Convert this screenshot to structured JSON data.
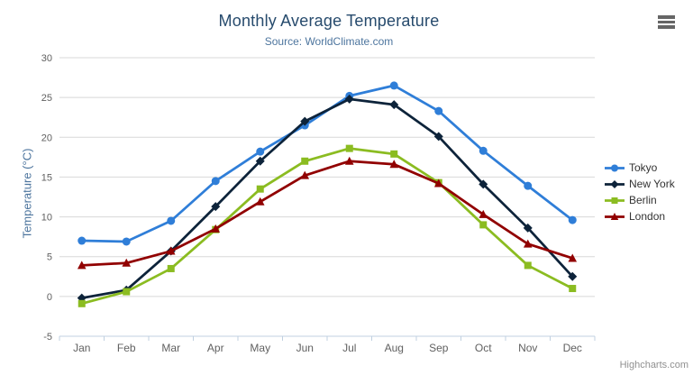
{
  "chart": {
    "title": "Monthly Average Temperature",
    "subtitle": "Source: WorldClimate.com",
    "y_axis_title": "Temperature (°C)",
    "credits": "Highcharts.com"
  },
  "icons": {
    "export_menu": "hamburger-icon"
  },
  "colors": {
    "title": "#274b6d",
    "subtitle": "#4d759e",
    "axis_labels": "#606060",
    "gridline": "#d8d8d8",
    "axis_line": "#c0d0e0",
    "legend_text": "#333333",
    "credits": "#909090",
    "export_icon": "#666666"
  },
  "chart_data": {
    "type": "line",
    "title": "Monthly Average Temperature",
    "subtitle": "Source: WorldClimate.com",
    "xlabel": "",
    "ylabel": "Temperature (°C)",
    "ylim": [
      -5,
      30
    ],
    "yticks": [
      -5,
      0,
      5,
      10,
      15,
      20,
      25,
      30
    ],
    "grid": true,
    "legend_position": "right",
    "categories": [
      "Jan",
      "Feb",
      "Mar",
      "Apr",
      "May",
      "Jun",
      "Jul",
      "Aug",
      "Sep",
      "Oct",
      "Nov",
      "Dec"
    ],
    "series": [
      {
        "name": "Tokyo",
        "color": "#2f7ed8",
        "marker": "circle",
        "values": [
          7.0,
          6.9,
          9.5,
          14.5,
          18.2,
          21.5,
          25.2,
          26.5,
          23.3,
          18.3,
          13.9,
          9.6
        ]
      },
      {
        "name": "New York",
        "color": "#0d233a",
        "marker": "diamond",
        "values": [
          -0.2,
          0.8,
          5.7,
          11.3,
          17.0,
          22.0,
          24.8,
          24.1,
          20.1,
          14.1,
          8.6,
          2.5
        ]
      },
      {
        "name": "Berlin",
        "color": "#8bbc21",
        "marker": "square",
        "values": [
          -0.9,
          0.6,
          3.5,
          8.4,
          13.5,
          17.0,
          18.6,
          17.9,
          14.3,
          9.0,
          3.9,
          1.0
        ]
      },
      {
        "name": "London",
        "color": "#910000",
        "marker": "triangle",
        "values": [
          3.9,
          4.2,
          5.7,
          8.5,
          11.9,
          15.2,
          17.0,
          16.6,
          14.2,
          10.3,
          6.6,
          4.8
        ]
      }
    ]
  }
}
